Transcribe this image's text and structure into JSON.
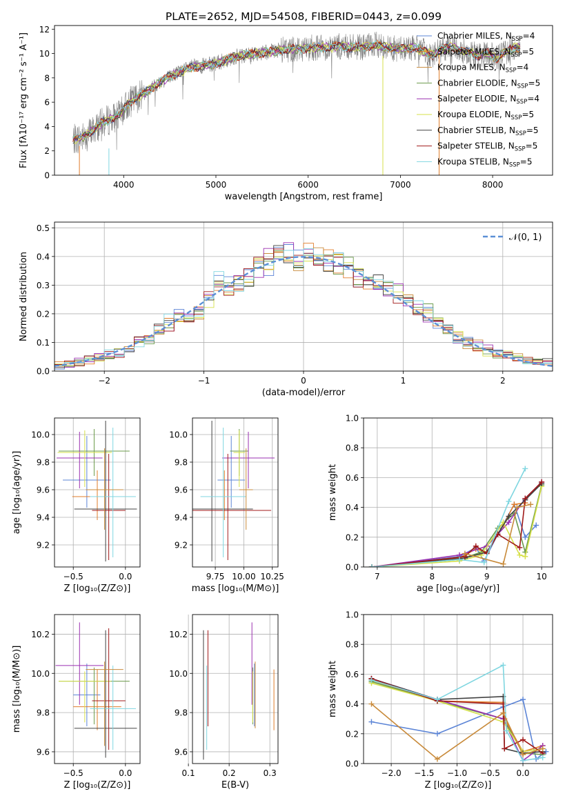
{
  "figure": {
    "title": "PLATE=2652, MJD=54508, FIBERID=0443, z=0.099"
  },
  "chart_data": [
    {
      "id": "spectrum",
      "type": "line",
      "xlabel": "wavelength [Angstrom, rest frame]",
      "ylabel": "Flux [fλ10⁻¹⁷ erg cm⁻² s⁻¹ A⁻¹]",
      "xlim": [
        3250,
        8650
      ],
      "ylim": [
        0,
        12.3
      ],
      "xticks": [
        4000,
        5000,
        6000,
        7000,
        8000
      ],
      "yticks": [
        0,
        2,
        4,
        6,
        8,
        10,
        12
      ],
      "grid": false,
      "legend_loc": "right",
      "data_color": "#808080",
      "spectrum_x": [
        3450,
        3550,
        3650,
        3750,
        3850,
        3950,
        4050,
        4150,
        4250,
        4350,
        4450,
        4550,
        4650,
        4750,
        4850,
        4950,
        5050,
        5150,
        5250,
        5350,
        5450,
        5550,
        5650,
        5750,
        5850,
        5950,
        6050,
        6150,
        6250,
        6350,
        6450,
        6550,
        6650,
        6750,
        6850,
        6950,
        7050,
        7150,
        7250,
        7350,
        7450,
        7550,
        7650,
        7750,
        7850,
        7950,
        8050,
        8150,
        8250
      ],
      "spectrum_y": [
        2.9,
        3.1,
        3.6,
        4.2,
        4.6,
        4.9,
        5.9,
        6.4,
        6.9,
        7.4,
        7.9,
        8.3,
        8.6,
        8.9,
        9.0,
        9.1,
        9.3,
        9.6,
        9.8,
        9.9,
        10.0,
        10.1,
        10.2,
        10.3,
        10.4,
        10.4,
        10.5,
        10.5,
        10.5,
        10.6,
        10.5,
        10.5,
        10.6,
        10.7,
        10.5,
        10.4,
        10.4,
        10.5,
        10.2,
        9.9,
        10.3,
        10.6,
        10.3,
        10.1,
        9.8,
        10.0,
        9.6,
        10.2,
        10.5
      ],
      "series": [
        {
          "name": "Chabrier MILES, N_SSP=4",
          "label_main": "Chabrier MILES, N",
          "label_sub": "SSP",
          "label_tail": "=4",
          "color": "#5b84d6"
        },
        {
          "name": "Salpeter MILES, N_SSP=5",
          "label_main": "Salpeter MILES, N",
          "label_sub": "SSP",
          "label_tail": "=5",
          "color": "#e07c2a"
        },
        {
          "name": "Kroupa MILES, N_SSP=4",
          "label_main": "Kroupa MILES, N",
          "label_sub": "SSP",
          "label_tail": "=4",
          "color": "#c88a3a"
        },
        {
          "name": "Chabrier ELODIE, N_SSP=5",
          "label_main": "Chabrier ELODIE, N",
          "label_sub": "SSP",
          "label_tail": "=5",
          "color": "#6a9a4a"
        },
        {
          "name": "Salpeter ELODIE, N_SSP=4",
          "label_main": "Salpeter ELODIE, N",
          "label_sub": "SSP",
          "label_tail": "=4",
          "color": "#9a2fb0"
        },
        {
          "name": "Kroupa ELODIE, N_SSP=5",
          "label_main": "Kroupa ELODIE, N",
          "label_sub": "SSP",
          "label_tail": "=5",
          "color": "#d6e04a"
        },
        {
          "name": "Chabrier STELIB, N_SSP=5",
          "label_main": "Chabrier STELIB, N",
          "label_sub": "SSP",
          "label_tail": "=5",
          "color": "#404040"
        },
        {
          "name": "Salpeter STELIB, N_SSP=5",
          "label_main": "Salpeter STELIB, N",
          "label_sub": "SSP",
          "label_tail": "=5",
          "color": "#a01818"
        },
        {
          "name": "Kroupa STELIB, N_SSP=5",
          "label_main": "Kroupa STELIB, N",
          "label_sub": "SSP",
          "label_tail": "=5",
          "color": "#7fd6e0"
        }
      ]
    },
    {
      "id": "residuals",
      "type": "area",
      "xlabel": "(data-model)/error",
      "ylabel": "Normed distribution",
      "xlim": [
        -2.5,
        2.5
      ],
      "ylim": [
        0,
        0.52
      ],
      "xticks": [
        -2,
        -1,
        0,
        1,
        2
      ],
      "yticks": [
        0.0,
        0.1,
        0.2,
        0.3,
        0.4,
        0.5
      ],
      "grid": true,
      "legend_entry": "𝒩(0, 1)",
      "normal_color": "#5b8fd6",
      "bin_edges": [
        -2.5,
        -2.4,
        -2.3,
        -2.2,
        -2.1,
        -2.0,
        -1.9,
        -1.8,
        -1.7,
        -1.6,
        -1.5,
        -1.4,
        -1.3,
        -1.2,
        -1.1,
        -1.0,
        -0.9,
        -0.8,
        -0.7,
        -0.6,
        -0.5,
        -0.4,
        -0.3,
        -0.2,
        -0.1,
        0.0,
        0.1,
        0.2,
        0.3,
        0.4,
        0.5,
        0.6,
        0.7,
        0.8,
        0.9,
        1.0,
        1.1,
        1.2,
        1.3,
        1.4,
        1.5,
        1.6,
        1.7,
        1.8,
        1.9,
        2.0,
        2.1,
        2.2,
        2.3,
        2.4,
        2.5
      ],
      "hist_base": [
        0.02,
        0.025,
        0.03,
        0.04,
        0.05,
        0.055,
        0.065,
        0.08,
        0.1,
        0.12,
        0.14,
        0.17,
        0.19,
        0.18,
        0.2,
        0.26,
        0.3,
        0.29,
        0.31,
        0.33,
        0.36,
        0.38,
        0.41,
        0.4,
        0.39,
        0.41,
        0.4,
        0.39,
        0.38,
        0.36,
        0.33,
        0.31,
        0.3,
        0.28,
        0.27,
        0.25,
        0.22,
        0.2,
        0.17,
        0.15,
        0.12,
        0.1,
        0.09,
        0.07,
        0.06,
        0.055,
        0.05,
        0.04,
        0.035,
        0.03
      ]
    },
    {
      "id": "age-vs-Z",
      "type": "scatter",
      "xlabel": "Z [log₁₀(Z/Z⊙)]",
      "ylabel": "age  [log₁₀(age/yr)]",
      "xlim": [
        -0.68,
        0.14
      ],
      "ylim": [
        9.04,
        10.12
      ],
      "xticks": [
        -0.5,
        0.0
      ],
      "yticks": [
        9.2,
        9.4,
        9.6,
        9.8,
        10.0
      ],
      "grid": true,
      "points": [
        {
          "x": -0.37,
          "y": 9.67,
          "xerr": 0.23,
          "ylo": 9.47,
          "yhi": 9.99,
          "c": 0
        },
        {
          "x": -0.27,
          "y": 9.55,
          "xerr": 0.24,
          "ylo": 9.38,
          "yhi": 9.74,
          "c": 1
        },
        {
          "x": -0.3,
          "y": 9.88,
          "xerr": 0.34,
          "ylo": 9.7,
          "yhi": 10.04,
          "c": 3
        },
        {
          "x": -0.44,
          "y": 9.83,
          "xerr": 0.22,
          "ylo": 9.61,
          "yhi": 10.02,
          "c": 4
        },
        {
          "x": -0.39,
          "y": 9.87,
          "xerr": 0.26,
          "ylo": 9.62,
          "yhi": 10.03,
          "c": 5
        },
        {
          "x": -0.19,
          "y": 9.46,
          "xerr": 0.3,
          "ylo": 9.08,
          "yhi": 10.1,
          "c": 6
        },
        {
          "x": -0.16,
          "y": 9.45,
          "xerr": 0.16,
          "ylo": 9.09,
          "yhi": 9.86,
          "c": 7
        },
        {
          "x": -0.12,
          "y": 9.55,
          "xerr": 0.22,
          "ylo": 9.11,
          "yhi": 10.05,
          "c": 8
        },
        {
          "x": -0.2,
          "y": 9.6,
          "xerr": 0.18,
          "ylo": 9.31,
          "yhi": 9.9,
          "c": 2
        }
      ]
    },
    {
      "id": "age-vs-mass",
      "type": "scatter",
      "xlabel": "mass [log₁₀(M/M⊙)]",
      "ylabel": "",
      "xlim": [
        9.55,
        10.3
      ],
      "ylim": [
        9.04,
        10.12
      ],
      "xticks": [
        9.75,
        10.0,
        10.25
      ],
      "yticks": [
        9.2,
        9.4,
        9.6,
        9.8,
        10.0
      ],
      "grid": true,
      "points": [
        {
          "x": 9.89,
          "y": 9.67,
          "xerr": 0.12,
          "ylo": 9.47,
          "yhi": 9.99,
          "c": 0
        },
        {
          "x": 9.83,
          "y": 9.55,
          "xerr": 0.1,
          "ylo": 9.38,
          "yhi": 9.74,
          "c": 1
        },
        {
          "x": 9.96,
          "y": 9.88,
          "xerr": 0.08,
          "ylo": 9.7,
          "yhi": 10.04,
          "c": 3
        },
        {
          "x": 10.04,
          "y": 9.83,
          "xerr": 0.23,
          "ylo": 9.61,
          "yhi": 10.02,
          "c": 4
        },
        {
          "x": 9.96,
          "y": 9.87,
          "xerr": 0.05,
          "ylo": 9.62,
          "yhi": 10.03,
          "c": 5
        },
        {
          "x": 9.72,
          "y": 9.46,
          "xerr": 0.36,
          "ylo": 9.08,
          "yhi": 10.1,
          "c": 6
        },
        {
          "x": 9.86,
          "y": 9.45,
          "xerr": 0.38,
          "ylo": 9.09,
          "yhi": 9.86,
          "c": 7
        },
        {
          "x": 9.82,
          "y": 9.55,
          "xerr": 0.2,
          "ylo": 9.11,
          "yhi": 10.05,
          "c": 8
        },
        {
          "x": 10.02,
          "y": 9.6,
          "xerr": 0.06,
          "ylo": 9.31,
          "yhi": 9.9,
          "c": 2
        }
      ]
    },
    {
      "id": "massweight-vs-age",
      "type": "line",
      "xlabel": "age  [log₁₀(age/yr)]",
      "ylabel": "mass weight",
      "xlim": [
        6.75,
        10.2
      ],
      "ylim": [
        0,
        1.0
      ],
      "xticks": [
        7,
        8,
        9,
        10
      ],
      "yticks": [
        0.0,
        0.2,
        0.4,
        0.6,
        0.8,
        1.0
      ],
      "grid": true,
      "lines": [
        {
          "c": 0,
          "x": [
            6.9,
            8.5,
            8.8,
            8.95,
            9.2,
            9.5,
            9.7,
            9.9
          ],
          "y": [
            0.0,
            0.07,
            0.13,
            0.04,
            0.22,
            0.42,
            0.2,
            0.28
          ]
        },
        {
          "c": 1,
          "x": [
            6.9,
            8.5,
            8.8,
            9.0,
            9.3,
            9.5,
            9.7
          ],
          "y": [
            0.0,
            0.06,
            0.12,
            0.1,
            0.28,
            0.42,
            0.43
          ]
        },
        {
          "c": 3,
          "x": [
            6.9,
            8.5,
            8.9,
            9.2,
            9.5,
            9.7,
            10.0
          ],
          "y": [
            0.0,
            0.05,
            0.1,
            0.26,
            0.36,
            0.1,
            0.55
          ]
        },
        {
          "c": 4,
          "x": [
            6.9,
            8.5,
            9.0,
            9.4,
            9.7,
            10.0
          ],
          "y": [
            0.0,
            0.08,
            0.14,
            0.3,
            0.46,
            0.57
          ]
        },
        {
          "c": 5,
          "x": [
            6.9,
            8.5,
            8.9,
            9.3,
            9.6,
            9.7,
            10.0
          ],
          "y": [
            0.0,
            0.04,
            0.08,
            0.3,
            0.08,
            0.07,
            0.54
          ]
        },
        {
          "c": 6,
          "x": [
            6.9,
            8.6,
            9.0,
            9.4,
            9.7,
            10.0
          ],
          "y": [
            0.0,
            0.06,
            0.1,
            0.34,
            0.45,
            0.56
          ]
        },
        {
          "c": 7,
          "x": [
            6.9,
            8.6,
            8.8,
            9.0,
            9.2,
            9.6,
            9.7,
            10.0
          ],
          "y": [
            0.0,
            0.07,
            0.14,
            0.09,
            0.22,
            0.13,
            0.46,
            0.57
          ]
        },
        {
          "c": 8,
          "x": [
            6.9,
            8.5,
            8.95,
            9.4,
            9.7
          ],
          "y": [
            0.0,
            0.05,
            0.03,
            0.44,
            0.66
          ]
        },
        {
          "c": 2,
          "x": [
            8.6,
            9.3,
            9.55,
            9.8
          ],
          "y": [
            0.09,
            0.02,
            0.4,
            0.42
          ]
        }
      ]
    },
    {
      "id": "mass-vs-Z",
      "type": "scatter",
      "xlabel": "Z [log₁₀(Z/Z⊙)]",
      "ylabel": "mass [log₁₀(M/M⊙)]",
      "xlim": [
        -0.68,
        0.14
      ],
      "ylim": [
        9.54,
        10.3
      ],
      "xticks": [
        -0.5,
        0.0
      ],
      "yticks": [
        9.6,
        9.8,
        10.0,
        10.2
      ],
      "grid": true,
      "points": [
        {
          "x": -0.37,
          "y": 9.89,
          "xerr": 0.13,
          "ylo": 9.73,
          "yhi": 10.05,
          "c": 0
        },
        {
          "x": -0.27,
          "y": 9.83,
          "xerr": 0.23,
          "ylo": 9.71,
          "yhi": 10.02,
          "c": 1
        },
        {
          "x": -0.3,
          "y": 9.96,
          "xerr": 0.34,
          "ylo": 9.74,
          "yhi": 10.03,
          "c": 3
        },
        {
          "x": -0.44,
          "y": 10.04,
          "xerr": 0.23,
          "ylo": 9.84,
          "yhi": 10.26,
          "c": 4
        },
        {
          "x": -0.39,
          "y": 9.96,
          "xerr": 0.25,
          "ylo": 9.75,
          "yhi": 10.01,
          "c": 5
        },
        {
          "x": -0.19,
          "y": 9.72,
          "xerr": 0.3,
          "ylo": 9.57,
          "yhi": 10.22,
          "c": 6
        },
        {
          "x": -0.16,
          "y": 9.86,
          "xerr": 0.16,
          "ylo": 9.61,
          "yhi": 10.23,
          "c": 7
        },
        {
          "x": -0.12,
          "y": 9.82,
          "xerr": 0.22,
          "ylo": 9.61,
          "yhi": 10.04,
          "c": 8
        },
        {
          "x": -0.2,
          "y": 10.02,
          "xerr": 0.18,
          "ylo": 9.63,
          "yhi": 10.06,
          "c": 2
        }
      ]
    },
    {
      "id": "mass-vs-EBV",
      "type": "scatter",
      "xlabel": "E(B-V)",
      "ylabel": "",
      "xlim": [
        0.11,
        0.32
      ],
      "ylim": [
        9.54,
        10.3
      ],
      "xticks": [
        0.1,
        0.2,
        0.3
      ],
      "yticks": [
        9.6,
        9.8,
        10.0,
        10.2
      ],
      "grid": true,
      "points": [
        {
          "x": 0.262,
          "y": 9.89,
          "ylo": 9.73,
          "yhi": 10.05,
          "c": 0
        },
        {
          "x": 0.31,
          "y": 9.83,
          "ylo": 9.71,
          "yhi": 10.02,
          "c": 1
        },
        {
          "x": 0.258,
          "y": 9.96,
          "ylo": 9.74,
          "yhi": 10.03,
          "c": 3
        },
        {
          "x": 0.256,
          "y": 10.04,
          "ylo": 9.84,
          "yhi": 10.26,
          "c": 4
        },
        {
          "x": 0.258,
          "y": 9.96,
          "ylo": 9.75,
          "yhi": 10.01,
          "c": 5
        },
        {
          "x": 0.137,
          "y": 9.72,
          "ylo": 9.56,
          "yhi": 10.22,
          "c": 6
        },
        {
          "x": 0.148,
          "y": 9.86,
          "ylo": 9.73,
          "yhi": 10.22,
          "c": 7
        },
        {
          "x": 0.145,
          "y": 9.82,
          "ylo": 9.61,
          "yhi": 10.04,
          "c": 8
        },
        {
          "x": 0.264,
          "y": 10.02,
          "ylo": 9.72,
          "yhi": 10.06,
          "c": 2
        }
      ]
    },
    {
      "id": "massweight-vs-Z",
      "type": "line",
      "xlabel": "Z [log₁₀(Z/Z⊙)]",
      "ylabel": "mass weight",
      "xlim": [
        -2.42,
        0.45
      ],
      "ylim": [
        0,
        1.0
      ],
      "xticks": [
        -2.0,
        -1.5,
        -1.0,
        -0.5,
        0.0
      ],
      "yticks": [
        0.0,
        0.2,
        0.4,
        0.6,
        0.8,
        1.0
      ],
      "grid": true,
      "lines": [
        {
          "c": 0,
          "x": [
            -2.3,
            -1.3,
            -0.3,
            0.0,
            0.2,
            0.35
          ],
          "y": [
            0.28,
            0.2,
            0.38,
            0.43,
            0.03,
            0.08
          ]
        },
        {
          "c": 1,
          "x": [
            -2.3,
            -1.3,
            -0.3,
            -0.28,
            0.0,
            0.3
          ],
          "y": [
            0.56,
            0.42,
            0.41,
            0.3,
            0.08,
            0.12
          ]
        },
        {
          "c": 3,
          "x": [
            -2.3,
            -1.3,
            -0.3,
            0.0,
            0.3
          ],
          "y": [
            0.55,
            0.42,
            0.3,
            0.07,
            0.06
          ]
        },
        {
          "c": 4,
          "x": [
            -2.3,
            -1.3,
            -0.3,
            0.0,
            0.3
          ],
          "y": [
            0.57,
            0.43,
            0.3,
            0.02,
            0.12
          ]
        },
        {
          "c": 5,
          "x": [
            -2.3,
            -1.3,
            -0.3,
            0.0,
            0.3
          ],
          "y": [
            0.54,
            0.42,
            0.28,
            0.08,
            0.1
          ]
        },
        {
          "c": 6,
          "x": [
            -2.3,
            -1.3,
            -0.3,
            -0.28,
            0.0,
            0.3
          ],
          "y": [
            0.57,
            0.43,
            0.45,
            0.1,
            0.07,
            0.08
          ]
        },
        {
          "c": 7,
          "x": [
            -2.3,
            -1.3,
            -0.3,
            -0.28,
            0.0,
            0.3
          ],
          "y": [
            0.57,
            0.42,
            0.4,
            0.1,
            0.16,
            0.07
          ]
        },
        {
          "c": 8,
          "x": [
            -2.3,
            -1.3,
            -0.3,
            -0.25,
            0.0,
            0.3
          ],
          "y": [
            0.56,
            0.43,
            0.66,
            0.22,
            0.02,
            0.04
          ]
        },
        {
          "c": 2,
          "x": [
            -2.3,
            -1.3,
            -0.3,
            0.0,
            0.3
          ],
          "y": [
            0.4,
            0.03,
            0.34,
            0.06,
            0.1
          ]
        }
      ]
    }
  ]
}
